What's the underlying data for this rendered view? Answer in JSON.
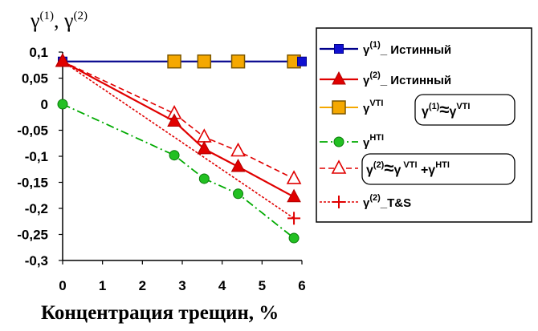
{
  "chart_data": {
    "type": "line",
    "ylabel": "γ(1), γ(2)",
    "xlabel": "Концентрация трещин, %",
    "xlim": [
      0,
      6
    ],
    "ylim": [
      -0.3,
      0.1
    ],
    "x_ticks": [
      "0",
      "1",
      "2",
      "3",
      "4",
      "5",
      "6"
    ],
    "y_ticks": [
      "0,1",
      "0,05",
      "0",
      "-0,05",
      "-0,1",
      "-0,15",
      "-0,2",
      "-0,25",
      "-0,3"
    ],
    "grid": false,
    "legend_position": "right",
    "series": [
      {
        "name": "γ(1)_ Истинный",
        "color": "#00008B",
        "marker": "square",
        "x": [
          0,
          6
        ],
        "y": [
          0.082,
          0.082
        ]
      },
      {
        "name": "γ(2)_ Истинный",
        "color": "#E00000",
        "marker": "triangle",
        "x": [
          0,
          2.8,
          3.55,
          4.4,
          5.8
        ],
        "y": [
          0.082,
          -0.033,
          -0.086,
          -0.12,
          -0.178
        ]
      },
      {
        "name": "γVTI",
        "color": "#F5A800",
        "marker": "square-outline",
        "x": [
          2.8,
          3.55,
          4.4,
          5.8
        ],
        "y": [
          0.082,
          0.082,
          0.082,
          0.082
        ]
      },
      {
        "name": "γHTI",
        "color": "#00AA00",
        "marker": "circle",
        "x": [
          0,
          2.8,
          3.55,
          4.4,
          5.8
        ],
        "y": [
          0.0,
          -0.098,
          -0.143,
          -0.172,
          -0.257
        ]
      },
      {
        "name": "γ(2)≈γVTI +γHTI",
        "color": "#E00000",
        "marker": "triangle-open",
        "x": [
          0,
          2.8,
          3.55,
          4.4,
          5.8
        ],
        "y": [
          0.082,
          -0.018,
          -0.063,
          -0.09,
          -0.143
        ]
      },
      {
        "name": "γ(2)_T&S",
        "color": "#E00000",
        "marker": "plus",
        "x": [
          0,
          5.8
        ],
        "y": [
          0.082,
          -0.219
        ]
      }
    ],
    "annotations": [
      "γ(1)≈γVTI"
    ]
  }
}
